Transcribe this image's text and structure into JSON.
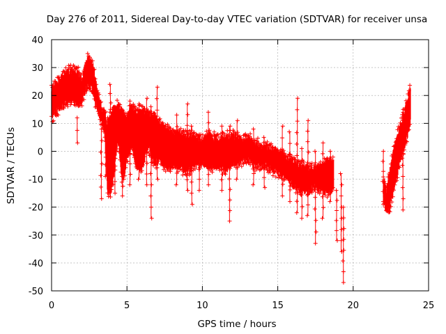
{
  "chart_data": {
    "type": "scatter",
    "title": "Day 276 of 2011, Sidereal Day-to-day VTEC variation (SDTVAR) for receiver unsa",
    "xlabel": "GPS time / hours",
    "ylabel": "SDTVAR / TECUs",
    "xlim": [
      0,
      25
    ],
    "ylim": [
      -50,
      40
    ],
    "xticks": [
      "0",
      "5",
      "10",
      "15",
      "20",
      "25"
    ],
    "yticks": [
      "40",
      "30",
      "20",
      "10",
      "0",
      "-10",
      "-20",
      "-30",
      "-40",
      "-50"
    ],
    "grid": true,
    "marker": "+",
    "series": [
      {
        "name": "SDTVAR",
        "color": "#ff0000",
        "band": {
          "x": [
            0.0,
            0.3,
            0.6,
            0.9,
            1.2,
            1.5,
            1.8,
            2.0,
            2.2,
            2.4,
            2.7,
            2.9,
            3.1,
            3.3,
            3.5,
            3.7,
            3.9,
            4.1,
            4.4,
            4.7,
            5.0,
            5.3,
            5.6,
            6.0,
            6.4,
            6.8,
            7.2,
            7.6,
            8.0,
            8.5,
            9.0,
            9.5,
            10.0,
            10.5,
            11.0,
            11.5,
            12.0,
            12.5,
            13.0,
            13.5,
            14.0,
            14.5,
            15.0,
            15.5,
            16.0,
            16.5,
            17.0,
            17.5,
            18.0,
            18.5,
            18.7
          ],
          "lo": [
            12,
            14,
            16,
            17,
            19,
            18,
            17,
            18,
            21,
            24,
            22,
            17,
            14,
            10,
            8,
            -14,
            -15,
            -10,
            5,
            -12,
            -3,
            3,
            -5,
            -6,
            2,
            -5,
            -3,
            -6,
            -5,
            -6,
            -7,
            -5,
            -4,
            -6,
            -5,
            -7,
            -4,
            -4,
            -3,
            -5,
            -5,
            -6,
            -8,
            -9,
            -12,
            -14,
            -14,
            -13,
            -14,
            -15,
            -13
          ],
          "hi": [
            22,
            24,
            26,
            28,
            29,
            29,
            28,
            25,
            30,
            33,
            32,
            26,
            20,
            16,
            14,
            10,
            13,
            15,
            17,
            14,
            12,
            16,
            14,
            15,
            14,
            13,
            10,
            8,
            6,
            7,
            6,
            5,
            4,
            6,
            4,
            5,
            6,
            4,
            5,
            3,
            2,
            1,
            0,
            -2,
            -3,
            -5,
            -6,
            -6,
            -5,
            -3,
            -4
          ]
        },
        "band2": {
          "x": [
            22.0,
            22.2,
            22.4,
            22.6,
            22.8,
            23.0,
            23.2,
            23.4,
            23.6,
            23.8
          ],
          "lo": [
            -17,
            -22,
            -21,
            -16,
            -12,
            -6,
            -2,
            2,
            6,
            10
          ],
          "hi": [
            -9,
            -14,
            -8,
            -2,
            3,
            7,
            10,
            14,
            19,
            23
          ]
        },
        "spikes": [
          {
            "x": 1.7,
            "y1": 12,
            "y2": 3
          },
          {
            "x": 3.3,
            "y1": 8,
            "y2": -17
          },
          {
            "x": 3.6,
            "y1": 12,
            "y2": -9
          },
          {
            "x": 3.9,
            "y1": 14,
            "y2": 24
          },
          {
            "x": 4.2,
            "y1": 10,
            "y2": -15
          },
          {
            "x": 4.7,
            "y1": -2,
            "y2": -16
          },
          {
            "x": 5.2,
            "y1": 18,
            "y2": -12
          },
          {
            "x": 5.8,
            "y1": 17,
            "y2": -10
          },
          {
            "x": 6.3,
            "y1": 19,
            "y2": -12
          },
          {
            "x": 6.6,
            "y1": 16,
            "y2": -24
          },
          {
            "x": 7.0,
            "y1": 23,
            "y2": -10
          },
          {
            "x": 8.3,
            "y1": 13,
            "y2": -12
          },
          {
            "x": 9.0,
            "y1": 17,
            "y2": -14
          },
          {
            "x": 9.3,
            "y1": 9,
            "y2": -19
          },
          {
            "x": 9.8,
            "y1": 6,
            "y2": -14
          },
          {
            "x": 10.4,
            "y1": 14,
            "y2": -12
          },
          {
            "x": 11.3,
            "y1": 9,
            "y2": -14
          },
          {
            "x": 11.8,
            "y1": 9,
            "y2": -25
          },
          {
            "x": 12.3,
            "y1": 11,
            "y2": -10
          },
          {
            "x": 13.4,
            "y1": 8,
            "y2": -12
          },
          {
            "x": 14.1,
            "y1": 5,
            "y2": -13
          },
          {
            "x": 15.3,
            "y1": 9,
            "y2": -16
          },
          {
            "x": 15.8,
            "y1": 7,
            "y2": -18
          },
          {
            "x": 16.3,
            "y1": 19,
            "y2": -22
          },
          {
            "x": 16.6,
            "y1": 1,
            "y2": -24
          },
          {
            "x": 17.0,
            "y1": 11,
            "y2": -23
          },
          {
            "x": 17.5,
            "y1": 0,
            "y2": -33
          },
          {
            "x": 18.0,
            "y1": 3,
            "y2": -24
          },
          {
            "x": 18.5,
            "y1": 0,
            "y2": -18
          },
          {
            "x": 18.9,
            "y1": -14,
            "y2": -32
          },
          {
            "x": 19.2,
            "y1": -8,
            "y2": -36
          },
          {
            "x": 19.35,
            "y1": -20,
            "y2": -47
          },
          {
            "x": 22.0,
            "y1": -18,
            "y2": 0
          },
          {
            "x": 23.3,
            "y1": 15,
            "y2": -21
          }
        ]
      }
    ]
  }
}
